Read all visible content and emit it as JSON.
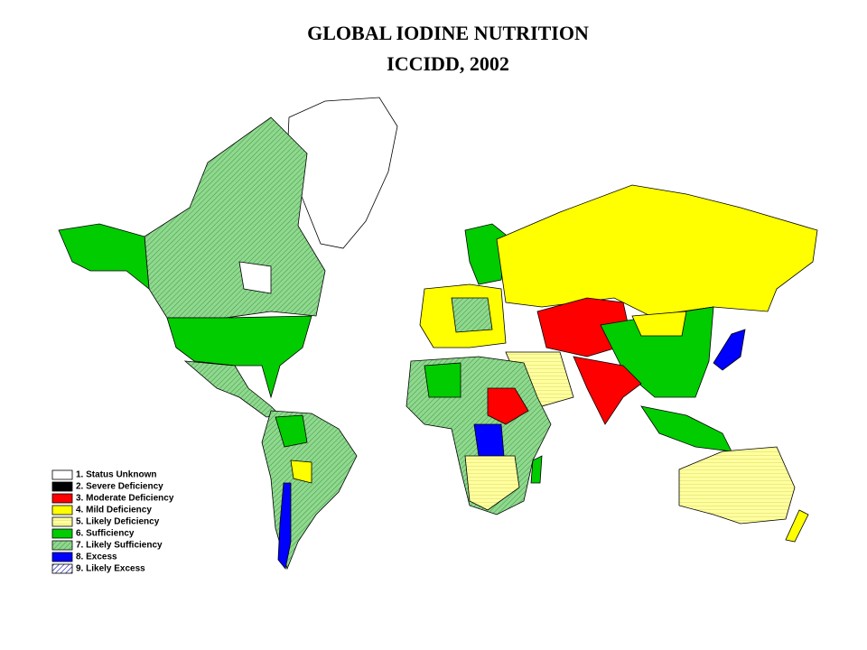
{
  "header": {
    "title": "GLOBAL IODINE NUTRITION",
    "subtitle": "ICCIDD, 2002"
  },
  "legend": [
    {
      "label": "1. Status Unknown",
      "color": "#ffffff",
      "hatched": false
    },
    {
      "label": "2. Severe Deficiency",
      "color": "#000000",
      "hatched": false
    },
    {
      "label": "3. Moderate Deficiency",
      "color": "#ff0000",
      "hatched": false
    },
    {
      "label": "4. Mild Deficiency",
      "color": "#ffff00",
      "hatched": false
    },
    {
      "label": "5. Likely Deficiency",
      "color": "#ffffa0",
      "hatched": true
    },
    {
      "label": "6. Sufficiency",
      "color": "#00cc00",
      "hatched": false
    },
    {
      "label": "7. Likely Sufficiency",
      "color": "#90d890",
      "hatched": true
    },
    {
      "label": "8. Excess",
      "color": "#0000ff",
      "hatched": false
    },
    {
      "label": "9. Likely Excess",
      "color": "#ffffff",
      "hatched": true
    }
  ]
}
